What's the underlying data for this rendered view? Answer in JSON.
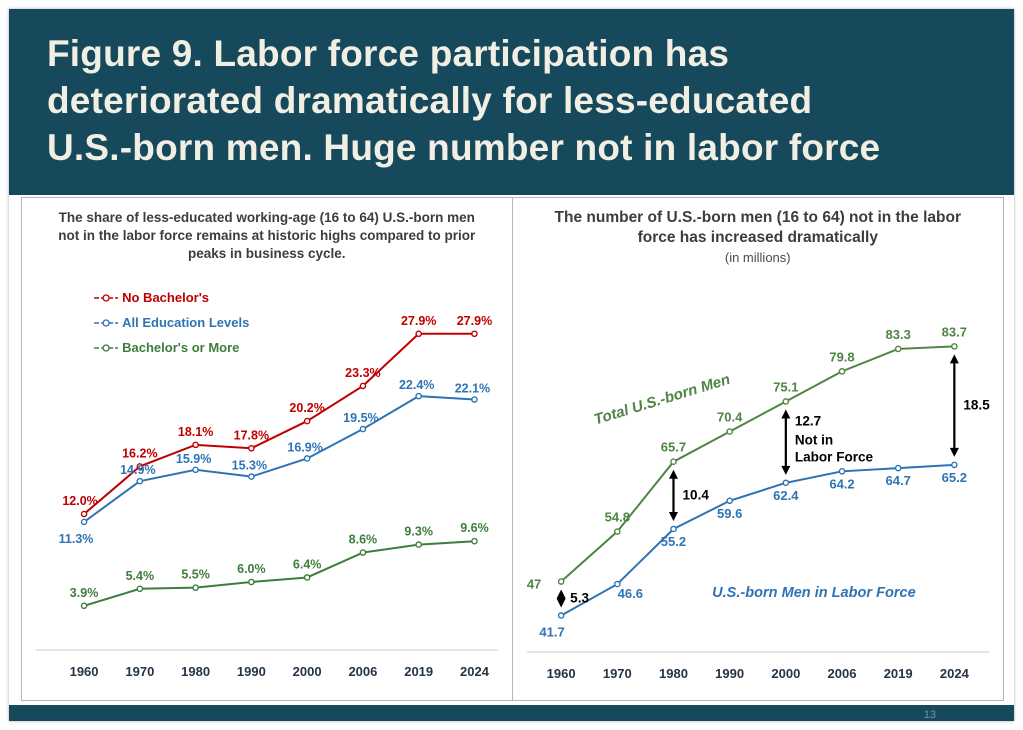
{
  "header": {
    "title_lines": [
      "Figure 9. Labor force participation has",
      "deteriorated dramatically for less-educated",
      "U.S.-born men. Huge number not in labor force"
    ]
  },
  "footer": {
    "page_number": "13"
  },
  "colors": {
    "header_bg": "#17495C",
    "red": "#C00000",
    "blue": "#2E74B5",
    "green_left": "#3E7D3C",
    "green_right": "#4E8542",
    "annotation": "#000000",
    "axis": "#c9c9c9",
    "tick_text": "#243447"
  },
  "chart_data": [
    {
      "type": "line",
      "title": "",
      "subtitle": "The share of less-educated working-age (16 to 64) U.S.-born men not in the labor force remains at historic highs compared to prior peaks in business cycle.",
      "categories": [
        "1960",
        "1970",
        "1980",
        "1990",
        "2000",
        "2006",
        "2019",
        "2024"
      ],
      "xlabel": "",
      "ylabel": "",
      "ylim": [
        0,
        30
      ],
      "grid": false,
      "legend_position": "top-left",
      "label_suffix": "%",
      "series": [
        {
          "name": "No Bachelor's",
          "color": "#C00000",
          "values": [
            12.0,
            16.2,
            18.1,
            17.8,
            20.2,
            23.3,
            27.9,
            27.9
          ],
          "labels": [
            "12.0%",
            "16.2%",
            "18.1%",
            "17.8%",
            "20.2%",
            "23.3%",
            "27.9%",
            "27.9%"
          ]
        },
        {
          "name": "All Education Levels",
          "color": "#2E74B5",
          "values": [
            11.3,
            14.9,
            15.9,
            15.3,
            16.9,
            19.5,
            22.4,
            22.1
          ],
          "labels": [
            "11.3%",
            "14.9%",
            "15.9%",
            "15.3%",
            "16.9%",
            "19.5%",
            "22.4%",
            "22.1%"
          ]
        },
        {
          "name": "Bachelor's or More",
          "color": "#3E7D3C",
          "values": [
            3.9,
            5.4,
            5.5,
            6.0,
            6.4,
            8.6,
            9.3,
            9.6
          ],
          "labels": [
            "3.9%",
            "5.4%",
            "5.5%",
            "6.0%",
            "6.4%",
            "8.6%",
            "9.3%",
            "9.6%"
          ]
        }
      ]
    },
    {
      "type": "line",
      "title": "",
      "subtitle": "The number of U.S.-born men (16 to 64) not in the labor force has increased dramatically",
      "units": "(in millions)",
      "categories": [
        "1960",
        "1970",
        "1980",
        "1990",
        "2000",
        "2006",
        "2019",
        "2024"
      ],
      "xlabel": "",
      "ylabel": "",
      "ylim": [
        36,
        90
      ],
      "grid": false,
      "legend_position": "none",
      "series": [
        {
          "name": "Total U.S.-born Men",
          "color": "#4E8542",
          "values": [
            47,
            54.8,
            65.7,
            70.4,
            75.1,
            79.8,
            83.3,
            83.7
          ],
          "labels": [
            "47",
            "54.8",
            "65.7",
            "70.4",
            "75.1",
            "79.8",
            "83.3",
            "83.7"
          ]
        },
        {
          "name": "U.S.-born Men in Labor Force",
          "color": "#2E74B5",
          "values": [
            41.7,
            46.6,
            55.2,
            59.6,
            62.4,
            64.2,
            64.7,
            65.2
          ],
          "labels": [
            "41.7",
            "46.6",
            "55.2",
            "59.6",
            "62.4",
            "64.2",
            "64.7",
            "65.2"
          ]
        }
      ],
      "annotations": [
        {
          "x": "1960",
          "top": 47,
          "bottom": 41.7,
          "label": "5.3"
        },
        {
          "x": "1980",
          "top": 65.7,
          "bottom": 55.2,
          "label": "10.4"
        },
        {
          "x": "2000",
          "top": 75.1,
          "bottom": 62.4,
          "label": "12.7",
          "sublabel": "Not in\nLabor Force",
          "label_at": "top"
        },
        {
          "x": "2024",
          "top": 83.7,
          "bottom": 65.2,
          "label": "18.5"
        }
      ]
    }
  ]
}
